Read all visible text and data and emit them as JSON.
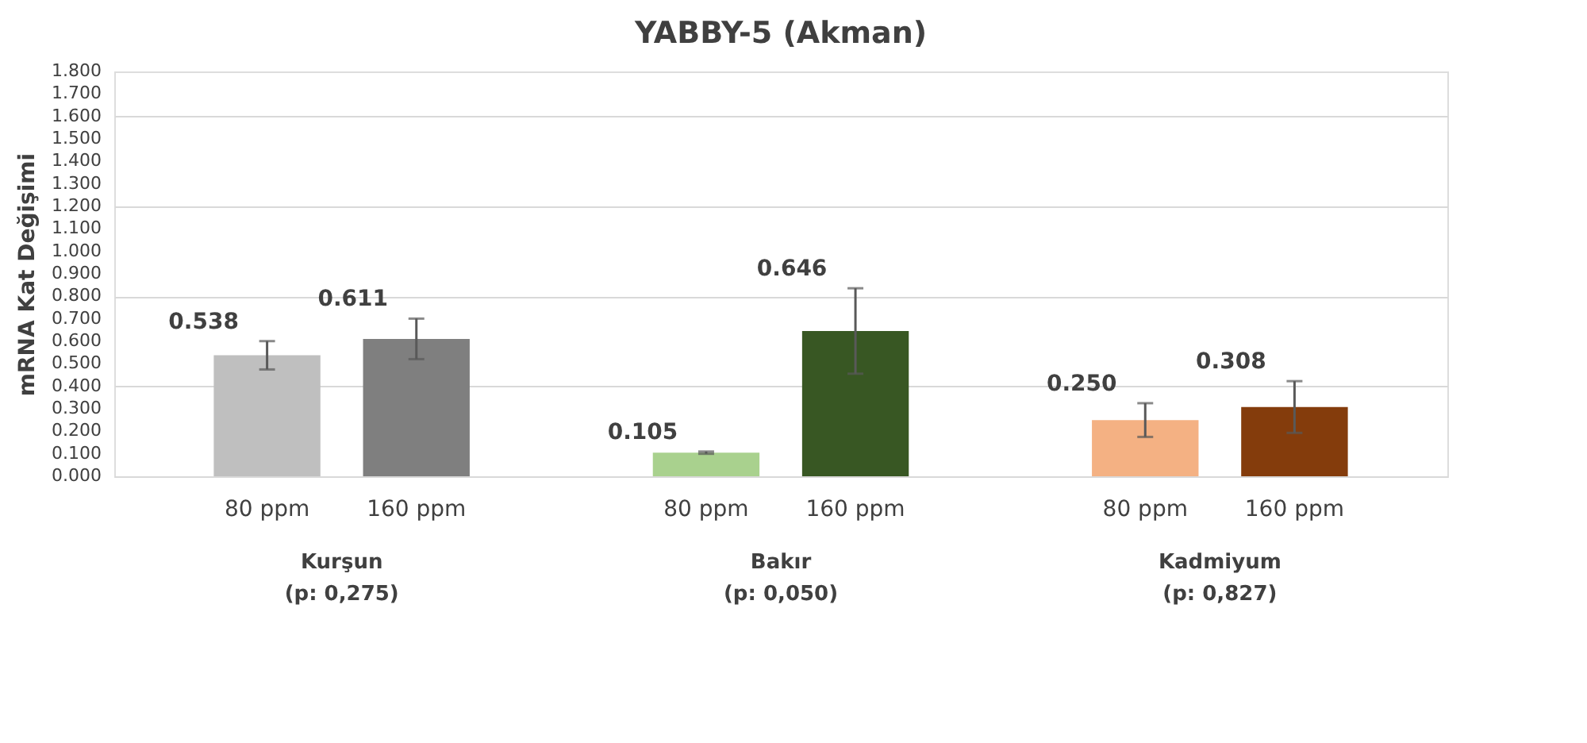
{
  "chart_data": {
    "type": "bar",
    "title": "YABBY-5 (Akman)",
    "ylabel": "mRNA Kat Değişimi",
    "categories": [
      "Kurşun\n(p: 0,275)",
      "Bakır\n(p: 0,050)",
      "Kadmiyum\n(p: 0,827)"
    ],
    "series": [
      {
        "name": "80 ppm",
        "colors": [
          "#bfbfbf",
          "#a9d18e",
          "#f4b183"
        ],
        "values": [
          0.538,
          0.105,
          0.25
        ],
        "errors": [
          0.063,
          0.005,
          0.075
        ],
        "value_labels": [
          "0.538",
          "0.105",
          "0.250"
        ]
      },
      {
        "name": "160 ppm",
        "colors": [
          "#7f7f7f",
          "#385723",
          "#843c0c"
        ],
        "values": [
          0.611,
          0.646,
          0.308
        ],
        "errors": [
          0.09,
          0.19,
          0.115
        ],
        "value_labels": [
          "0.611",
          "0.646",
          "0.308"
        ]
      }
    ],
    "ylim": [
      0,
      1.8
    ],
    "yticks": [
      {
        "value": 0,
        "label": "0.000"
      },
      {
        "value": 0.1,
        "label": "0.100"
      },
      {
        "value": 0.2,
        "label": "0.200"
      },
      {
        "value": 0.3,
        "label": "0.300"
      },
      {
        "value": 0.4,
        "label": "0.400"
      },
      {
        "value": 0.5,
        "label": "0.500"
      },
      {
        "value": 0.6,
        "label": "0.600"
      },
      {
        "value": 0.7,
        "label": "0.700"
      },
      {
        "value": 0.8,
        "label": "0.800"
      },
      {
        "value": 0.9,
        "label": "0.900"
      },
      {
        "value": 1.0,
        "label": "1.000"
      },
      {
        "value": 1.1,
        "label": "1.100"
      },
      {
        "value": 1.2,
        "label": "1.200"
      },
      {
        "value": 1.3,
        "label": "1.300"
      },
      {
        "value": 1.4,
        "label": "1.400"
      },
      {
        "value": 1.5,
        "label": "1.500"
      },
      {
        "value": 1.6,
        "label": "1.600"
      },
      {
        "value": 1.7,
        "label": "1.700"
      },
      {
        "value": 1.8,
        "label": "1.800"
      }
    ],
    "grid": "y",
    "legend": false
  }
}
